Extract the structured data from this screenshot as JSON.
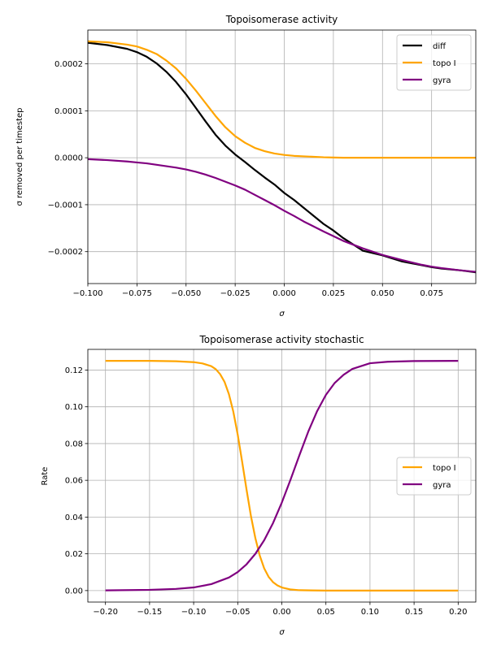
{
  "chart_data": [
    {
      "type": "line",
      "title": "Topoisomerase activity",
      "xlabel": "σ",
      "ylabel": "σ removed per timestep",
      "xlim": [
        -0.1,
        0.0975
      ],
      "ylim": [
        -0.000268,
        0.000272
      ],
      "xticks": [
        -0.1,
        -0.075,
        -0.05,
        -0.025,
        0.0,
        0.025,
        0.05,
        0.075
      ],
      "xtick_labels": [
        "−0.100",
        "−0.075",
        "−0.050",
        "−0.025",
        "0.000",
        "0.025",
        "0.050",
        "0.075"
      ],
      "yticks": [
        -0.0002,
        -0.0001,
        0.0,
        0.0001,
        0.0002
      ],
      "ytick_labels": [
        "−0.0002",
        "−0.0001",
        "0.0000",
        "0.0001",
        "0.0002"
      ],
      "grid": true,
      "legend_position": "upper right",
      "series": [
        {
          "name": "diff",
          "color": "#000000",
          "x": [
            -0.1,
            -0.09,
            -0.08,
            -0.075,
            -0.07,
            -0.065,
            -0.06,
            -0.055,
            -0.05,
            -0.045,
            -0.04,
            -0.035,
            -0.03,
            -0.025,
            -0.02,
            -0.015,
            -0.01,
            -0.005,
            0.0,
            0.005,
            0.01,
            0.02,
            0.025,
            0.03,
            0.04,
            0.05,
            0.06,
            0.07,
            0.075,
            0.08,
            0.09,
            0.0975
          ],
          "values": [
            0.000245,
            0.00024,
            0.000232,
            0.000225,
            0.000215,
            0.000201,
            0.000183,
            0.000161,
            0.000135,
            0.000106,
            7.7e-05,
            4.9e-05,
            2.6e-05,
            7e-06,
            -9e-06,
            -2.6e-05,
            -4.2e-05,
            -5.7e-05,
            -7.5e-05,
            -9e-05,
            -0.000107,
            -0.000141,
            -0.000155,
            -0.000171,
            -0.000198,
            -0.000208,
            -0.000221,
            -0.000229,
            -0.000233,
            -0.000236,
            -0.00024,
            -0.000244
          ]
        },
        {
          "name": "topo I",
          "color": "#ffa500",
          "x": [
            -0.1,
            -0.09,
            -0.08,
            -0.075,
            -0.07,
            -0.065,
            -0.06,
            -0.055,
            -0.05,
            -0.045,
            -0.04,
            -0.035,
            -0.03,
            -0.025,
            -0.02,
            -0.015,
            -0.01,
            -0.005,
            0.0,
            0.005,
            0.01,
            0.02,
            0.025,
            0.03,
            0.04,
            0.05,
            0.06,
            0.07,
            0.075,
            0.08,
            0.09,
            0.0975
          ],
          "values": [
            0.000248,
            0.000246,
            0.000241,
            0.000237,
            0.00023,
            0.000221,
            0.000207,
            0.00019,
            0.000168,
            0.000143,
            0.000116,
            8.9e-05,
            6.5e-05,
            4.6e-05,
            3.2e-05,
            2.1e-05,
            1.4e-05,
            9e-06,
            6e-06,
            4e-06,
            3e-06,
            1e-06,
            5e-07,
            0.0,
            0.0,
            0.0,
            0.0,
            0.0,
            0.0,
            0.0,
            0.0,
            0.0
          ]
        },
        {
          "name": "gyra",
          "color": "#800080",
          "x": [
            -0.1,
            -0.09,
            -0.08,
            -0.075,
            -0.07,
            -0.065,
            -0.06,
            -0.055,
            -0.05,
            -0.045,
            -0.04,
            -0.035,
            -0.03,
            -0.025,
            -0.02,
            -0.015,
            -0.01,
            -0.005,
            0.0,
            0.005,
            0.01,
            0.02,
            0.025,
            0.03,
            0.04,
            0.05,
            0.06,
            0.07,
            0.075,
            0.08,
            0.09,
            0.0975
          ],
          "values": [
            -3e-06,
            -5e-06,
            -8e-06,
            -1e-05,
            -1.2e-05,
            -1.5e-05,
            -1.8e-05,
            -2.1e-05,
            -2.5e-05,
            -3e-05,
            -3.6e-05,
            -4.3e-05,
            -5.1e-05,
            -5.9e-05,
            -6.8e-05,
            -7.9e-05,
            -9e-05,
            -0.000101,
            -0.000113,
            -0.000124,
            -0.000136,
            -0.000157,
            -0.000167,
            -0.000177,
            -0.000193,
            -0.000207,
            -0.000218,
            -0.000228,
            -0.000232,
            -0.000235,
            -0.00024,
            -0.000243
          ]
        }
      ]
    },
    {
      "type": "line",
      "title": "Topoisomerase activity stochastic",
      "xlabel": "σ",
      "ylabel": "Rate",
      "xlim": [
        -0.22,
        0.22
      ],
      "ylim": [
        -0.00625,
        0.13125
      ],
      "xticks": [
        -0.2,
        -0.15,
        -0.1,
        -0.05,
        0.0,
        0.05,
        0.1,
        0.15,
        0.2
      ],
      "xtick_labels": [
        "−0.20",
        "−0.15",
        "−0.10",
        "−0.05",
        "0.00",
        "0.05",
        "0.10",
        "0.15",
        "0.20"
      ],
      "yticks": [
        0.0,
        0.02,
        0.04,
        0.06,
        0.08,
        0.1,
        0.12
      ],
      "ytick_labels": [
        "0.00",
        "0.02",
        "0.04",
        "0.06",
        "0.08",
        "0.10",
        "0.12"
      ],
      "grid": true,
      "legend_position": "center right",
      "series": [
        {
          "name": "topo I",
          "color": "#ffa500",
          "x": [
            -0.2,
            -0.15,
            -0.12,
            -0.1,
            -0.09,
            -0.08,
            -0.075,
            -0.07,
            -0.065,
            -0.06,
            -0.055,
            -0.05,
            -0.045,
            -0.04,
            -0.035,
            -0.03,
            -0.025,
            -0.02,
            -0.015,
            -0.01,
            -0.005,
            0.0,
            0.01,
            0.02,
            0.05,
            0.1,
            0.15,
            0.2
          ],
          "values": [
            0.125,
            0.125,
            0.1248,
            0.1243,
            0.1236,
            0.1221,
            0.1205,
            0.1178,
            0.1136,
            0.1069,
            0.0973,
            0.0848,
            0.0701,
            0.0549,
            0.0405,
            0.0285,
            0.019,
            0.0121,
            0.0075,
            0.0046,
            0.0028,
            0.0017,
            0.0006,
            0.0002,
            0.0,
            0.0,
            0.0,
            0.0
          ]
        },
        {
          "name": "gyra",
          "color": "#800080",
          "x": [
            -0.2,
            -0.15,
            -0.12,
            -0.1,
            -0.08,
            -0.06,
            -0.05,
            -0.04,
            -0.03,
            -0.02,
            -0.01,
            0.0,
            0.01,
            0.02,
            0.03,
            0.04,
            0.05,
            0.06,
            0.07,
            0.08,
            0.1,
            0.12,
            0.15,
            0.2
          ],
          "values": [
            0.0001,
            0.0004,
            0.0009,
            0.0017,
            0.0035,
            0.0071,
            0.0101,
            0.0143,
            0.02,
            0.0274,
            0.0367,
            0.0479,
            0.0605,
            0.0737,
            0.0865,
            0.0976,
            0.1065,
            0.113,
            0.1174,
            0.1206,
            0.1237,
            0.1245,
            0.1249,
            0.125
          ]
        }
      ]
    }
  ]
}
